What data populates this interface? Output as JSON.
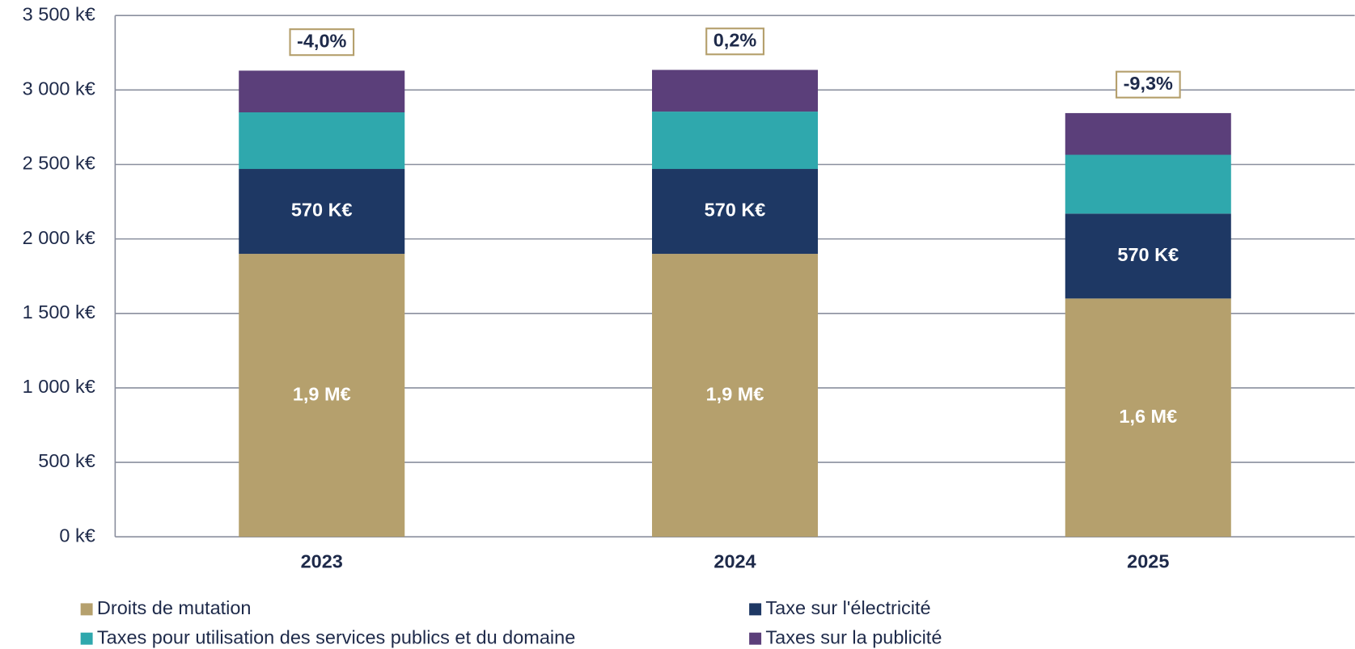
{
  "chart_data": {
    "type": "stacked_bar",
    "categories": [
      "2023",
      "2024",
      "2025"
    ],
    "series": [
      {
        "name": "Droits de mutation",
        "color": "#b5a06d",
        "values": [
          1900,
          1900,
          1600
        ],
        "value_labels": [
          "1,9 M€",
          "1,9 M€",
          "1,6 M€"
        ]
      },
      {
        "name": "Taxe sur l'électricité",
        "color": "#1e3864",
        "values": [
          570,
          570,
          570
        ],
        "value_labels": [
          "570 K€",
          "570 K€",
          "570 K€"
        ]
      },
      {
        "name": "Taxes pour utilisation des services publics et du domaine",
        "color": "#2fa8ad",
        "values": [
          380,
          385,
          395
        ]
      },
      {
        "name": "Taxes sur la publicité",
        "color": "#5b3f7a",
        "values": [
          280,
          280,
          280
        ]
      }
    ],
    "annotations": [
      "-4,0%",
      "0,2%",
      "-9,3%"
    ],
    "ylim": [
      0,
      3500
    ],
    "yticks": [
      {
        "value": 0,
        "label": "0 k€"
      },
      {
        "value": 500,
        "label": "500 k€"
      },
      {
        "value": 1000,
        "label": "1 000 k€"
      },
      {
        "value": 1500,
        "label": "1 500 k€"
      },
      {
        "value": 2000,
        "label": "2 000 k€"
      },
      {
        "value": 2500,
        "label": "2 500 k€"
      },
      {
        "value": 3000,
        "label": "3 000 k€"
      },
      {
        "value": 3500,
        "label": "3 500 k€"
      }
    ],
    "grid": true
  }
}
